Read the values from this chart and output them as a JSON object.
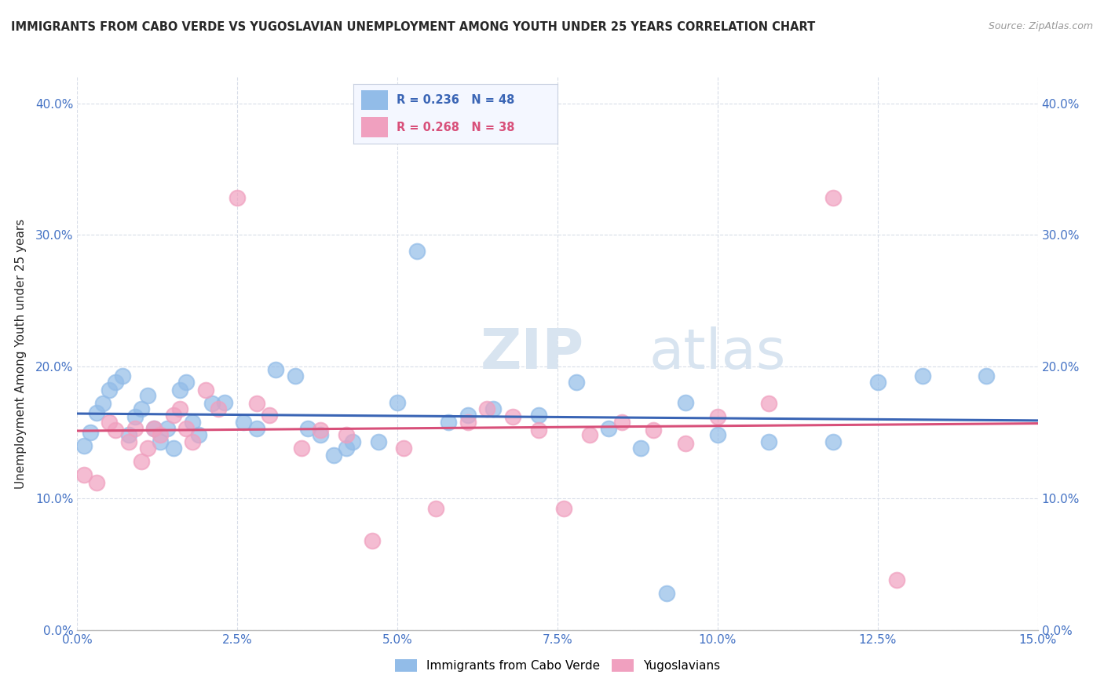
{
  "title": "IMMIGRANTS FROM CABO VERDE VS YUGOSLAVIAN UNEMPLOYMENT AMONG YOUTH UNDER 25 YEARS CORRELATION CHART",
  "source": "Source: ZipAtlas.com",
  "ylabel": "Unemployment Among Youth under 25 years",
  "xlim": [
    0.0,
    0.15
  ],
  "ylim": [
    0.0,
    0.42
  ],
  "xticks": [
    0.0,
    0.025,
    0.05,
    0.075,
    0.1,
    0.125,
    0.15
  ],
  "yticks": [
    0.0,
    0.1,
    0.2,
    0.3,
    0.4
  ],
  "cabo_verde_R": 0.236,
  "cabo_verde_N": 48,
  "yugoslavian_R": 0.268,
  "yugoslavian_N": 38,
  "cabo_verde_color": "#92bce8",
  "yugoslavian_color": "#f0a0bf",
  "cabo_verde_line_color": "#3a65b5",
  "yugoslavian_line_color": "#d8507a",
  "background_color": "#ffffff",
  "grid_color": "#d8dde8",
  "title_color": "#282828",
  "tick_color": "#4472c4",
  "watermark_color": "#d8e4f0",
  "cabo_verde_x": [
    0.001,
    0.002,
    0.003,
    0.004,
    0.005,
    0.006,
    0.007,
    0.008,
    0.009,
    0.01,
    0.011,
    0.012,
    0.013,
    0.014,
    0.015,
    0.016,
    0.017,
    0.018,
    0.019,
    0.021,
    0.023,
    0.026,
    0.028,
    0.031,
    0.034,
    0.036,
    0.038,
    0.04,
    0.042,
    0.043,
    0.047,
    0.05,
    0.053,
    0.058,
    0.061,
    0.065,
    0.072,
    0.078,
    0.083,
    0.088,
    0.092,
    0.095,
    0.1,
    0.108,
    0.118,
    0.125,
    0.132,
    0.142
  ],
  "cabo_verde_y": [
    0.14,
    0.15,
    0.165,
    0.172,
    0.182,
    0.188,
    0.193,
    0.148,
    0.162,
    0.168,
    0.178,
    0.153,
    0.143,
    0.153,
    0.138,
    0.182,
    0.188,
    0.158,
    0.148,
    0.172,
    0.173,
    0.158,
    0.153,
    0.198,
    0.193,
    0.153,
    0.148,
    0.133,
    0.138,
    0.143,
    0.143,
    0.173,
    0.288,
    0.158,
    0.163,
    0.168,
    0.163,
    0.188,
    0.153,
    0.138,
    0.028,
    0.173,
    0.148,
    0.143,
    0.143,
    0.188,
    0.193,
    0.193
  ],
  "yugoslavian_x": [
    0.001,
    0.003,
    0.005,
    0.006,
    0.008,
    0.009,
    0.01,
    0.011,
    0.012,
    0.013,
    0.015,
    0.016,
    0.017,
    0.018,
    0.02,
    0.022,
    0.025,
    0.028,
    0.03,
    0.035,
    0.038,
    0.042,
    0.046,
    0.051,
    0.056,
    0.061,
    0.064,
    0.068,
    0.072,
    0.076,
    0.08,
    0.085,
    0.09,
    0.095,
    0.1,
    0.108,
    0.118,
    0.128
  ],
  "yugoslavian_y": [
    0.118,
    0.112,
    0.158,
    0.152,
    0.143,
    0.153,
    0.128,
    0.138,
    0.153,
    0.148,
    0.163,
    0.168,
    0.153,
    0.143,
    0.182,
    0.168,
    0.328,
    0.172,
    0.163,
    0.138,
    0.152,
    0.148,
    0.068,
    0.138,
    0.092,
    0.158,
    0.168,
    0.162,
    0.152,
    0.092,
    0.148,
    0.158,
    0.152,
    0.142,
    0.162,
    0.172,
    0.328,
    0.038
  ],
  "legend_cabo_label": "Immigrants from Cabo Verde",
  "legend_yugo_label": "Yugoslavians",
  "watermark_zip": "ZIP",
  "watermark_atlas": "atlas"
}
